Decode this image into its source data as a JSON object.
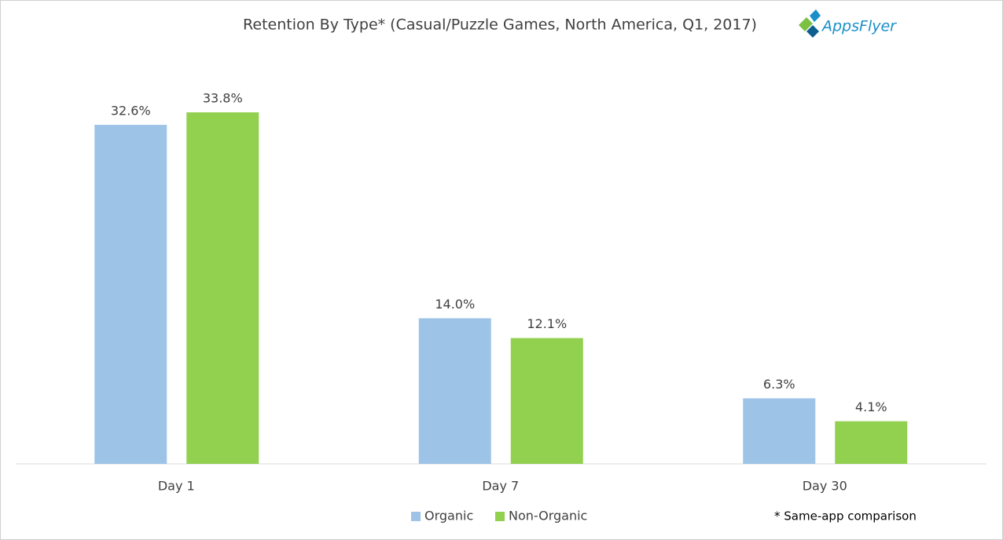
{
  "chart_data": {
    "type": "bar",
    "title": "Retention By Type* (Casual/Puzzle Games, North America, Q1, 2017)",
    "logo": "AppsFlyer",
    "annotation": "* Same-app comparison",
    "categories": [
      "Day 1",
      "Day 7",
      "Day 30"
    ],
    "series": [
      {
        "name": "Organic",
        "color": "#9dc3e6",
        "values": [
          32.6,
          14.0,
          6.3
        ],
        "value_labels": [
          "32.6%",
          "14.0%",
          "6.3%"
        ]
      },
      {
        "name": "Non-Organic",
        "color": "#92d050",
        "values": [
          33.8,
          12.1,
          4.1
        ],
        "value_labels": [
          "33.8%",
          "12.1%",
          "4.1%"
        ]
      }
    ],
    "legend": "bottom"
  }
}
